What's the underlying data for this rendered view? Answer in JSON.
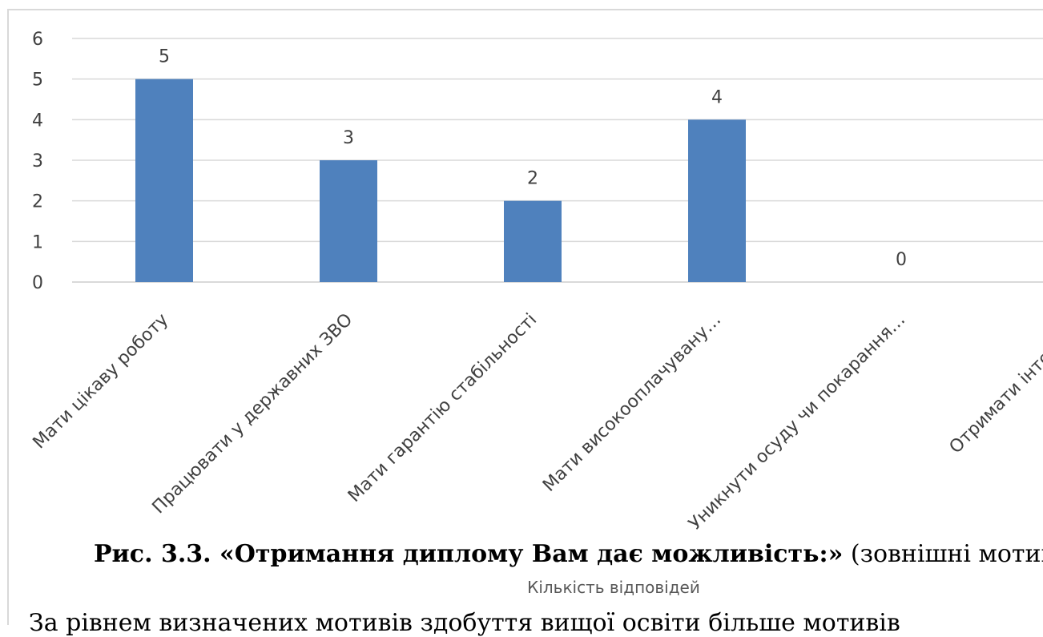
{
  "chart_data": {
    "type": "bar",
    "categories": [
      "Мати цікаву роботу",
      "Працювати у державних ЗВО",
      "Мати гарантію стабільності",
      "Мати високооплачувану…",
      "Уникнути осуду чи покарання…",
      "Отримати інтелекту"
    ],
    "values": [
      5,
      3,
      2,
      4,
      0,
      null
    ],
    "data_labels": [
      "5",
      "3",
      "2",
      "4",
      "0",
      ""
    ],
    "ylim": [
      0,
      6
    ],
    "yticks": [
      0,
      1,
      2,
      3,
      4,
      5,
      6
    ],
    "xlabel": "Кількість відповідей",
    "bar_color": "#4f81bd",
    "grid": true
  },
  "caption": {
    "bold_part": "Рис. 3.3. «Отримання диплому Вам дає можливість:»",
    "normal_part": " (зовнішні мотиви)"
  },
  "body_text": "За рівнем визначених мотивів здобуття вищої освіти більше мотивів"
}
